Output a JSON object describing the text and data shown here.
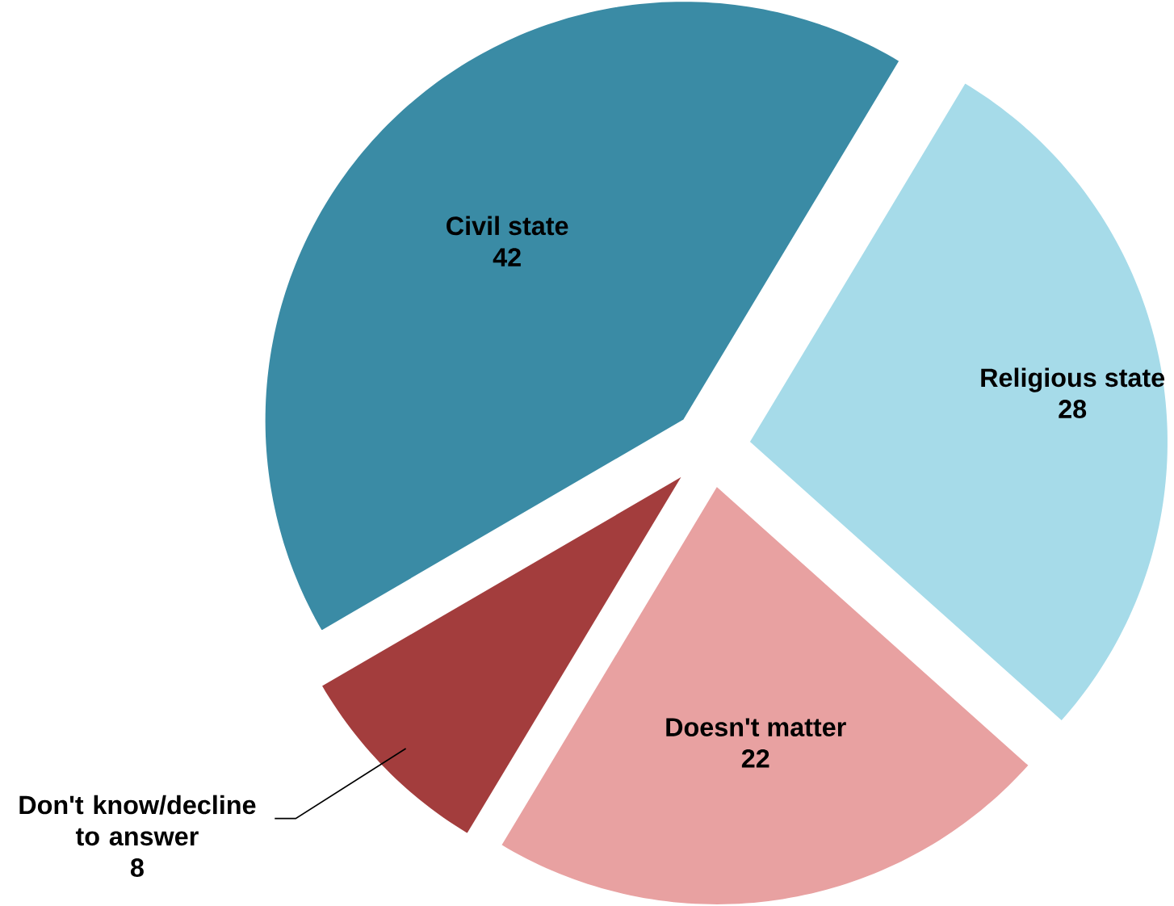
{
  "chart_data": {
    "type": "pie",
    "categories": [
      "Religious state",
      "Doesn't matter",
      "Don't know/decline to answer",
      "Civil state"
    ],
    "values": [
      28,
      22,
      8,
      42
    ],
    "colors": [
      "#a6dbe9",
      "#e8a1a1",
      "#a33d3d",
      "#3a8ba5"
    ],
    "data_labels": true
  }
}
